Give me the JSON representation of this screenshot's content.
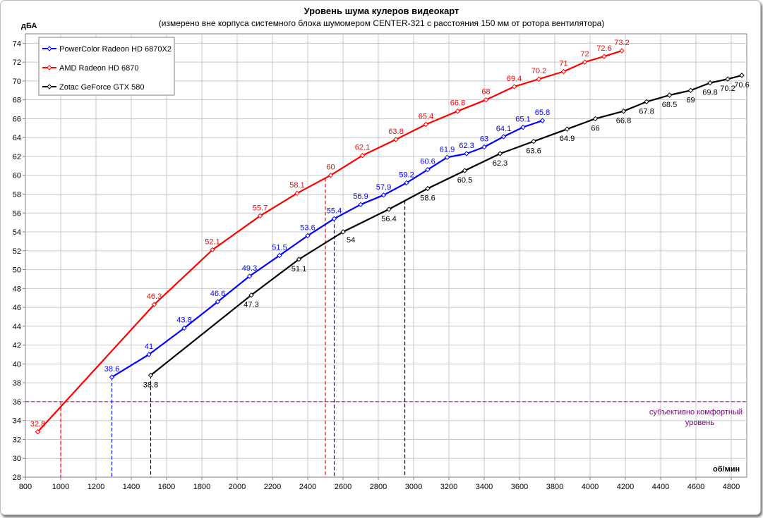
{
  "chart_data": {
    "type": "line",
    "title": "Уровень шума кулеров видеокарт",
    "subtitle": "(измерено вне корпуса системного блока шумомером CENTER-321 с расстояния 150  мм от ротора вентилятора)",
    "ylabel": "дБА",
    "xlabel": "об/мин",
    "xlim": [
      800,
      4880
    ],
    "ylim": [
      28,
      75
    ],
    "x_ticks": [
      800,
      1000,
      1200,
      1400,
      1600,
      1800,
      2000,
      2200,
      2400,
      2600,
      2800,
      3000,
      3200,
      3400,
      3600,
      3800,
      4000,
      4200,
      4400,
      4600,
      4800
    ],
    "y_ticks": [
      28,
      30,
      32,
      34,
      36,
      38,
      40,
      42,
      44,
      46,
      48,
      50,
      52,
      54,
      56,
      58,
      60,
      62,
      64,
      66,
      68,
      70,
      72,
      74
    ],
    "grid": true,
    "legend_position": "top-left",
    "comfort_level": {
      "y": 36,
      "label_line1": "субъективно комфортный",
      "label_line2": "уровень",
      "color": "#800080"
    },
    "series": [
      {
        "name": "PowerColor Radeon HD 6870X2",
        "color": "#0000ff",
        "points": [
          [
            1290,
            38.6,
            "38.6"
          ],
          [
            1500,
            41.0,
            "41"
          ],
          [
            1700,
            43.8,
            "43.8"
          ],
          [
            1890,
            46.6,
            "46.6"
          ],
          [
            2070,
            49.3,
            "49.3"
          ],
          [
            2240,
            51.5,
            "51.5"
          ],
          [
            2400,
            53.6,
            "53.6"
          ],
          [
            2550,
            55.4,
            "55.4"
          ],
          [
            2700,
            56.9,
            "56.9"
          ],
          [
            2830,
            57.9,
            "57.9"
          ],
          [
            2960,
            59.2,
            "59.2"
          ],
          [
            3080,
            60.6,
            "60.6"
          ],
          [
            3190,
            61.9,
            "61.9"
          ],
          [
            3300,
            62.3,
            "62.3"
          ],
          [
            3400,
            63.0,
            "63"
          ],
          [
            3510,
            64.1,
            "64.1"
          ],
          [
            3620,
            65.1,
            "65.1"
          ],
          [
            3730,
            65.8,
            "65.8"
          ]
        ],
        "label_positions": [
          "above",
          "above",
          "above",
          "above",
          "above",
          "above",
          "above",
          "above",
          "above",
          "above",
          "above",
          "above",
          "above",
          "above",
          "above",
          "above",
          "above",
          "above"
        ],
        "drop_line_x": 1290,
        "drop_line_x2": 2550
      },
      {
        "name": "AMD Radeon HD 6870",
        "color": "#ff0000",
        "points": [
          [
            870,
            32.8,
            "32.8"
          ],
          [
            1530,
            46.3,
            "46.3"
          ],
          [
            1860,
            52.1,
            "52.1"
          ],
          [
            2130,
            55.7,
            "55.7"
          ],
          [
            2340,
            58.1,
            "58.1"
          ],
          [
            2530,
            60.0,
            "60"
          ],
          [
            2710,
            62.1,
            "62.1"
          ],
          [
            2900,
            63.8,
            "63.8"
          ],
          [
            3070,
            65.4,
            "65.4"
          ],
          [
            3250,
            66.8,
            "66.8"
          ],
          [
            3410,
            68.0,
            "68"
          ],
          [
            3570,
            69.4,
            "69.4"
          ],
          [
            3710,
            70.2,
            "70.2"
          ],
          [
            3850,
            71.0,
            "71"
          ],
          [
            3970,
            72.0,
            "72"
          ],
          [
            4080,
            72.6,
            "72.6"
          ],
          [
            4180,
            73.2,
            "73.2"
          ]
        ],
        "label_positions": [
          "above",
          "above",
          "above",
          "above",
          "above",
          "above",
          "above",
          "above",
          "above",
          "above",
          "above",
          "above",
          "above",
          "above",
          "above",
          "above",
          "above"
        ],
        "drop_line_x": 1000,
        "drop_line_x2": 2500
      },
      {
        "name": "Zotac GeForce GTX 580",
        "color": "#000000",
        "points": [
          [
            1510,
            38.8,
            "38.8"
          ],
          [
            2080,
            47.3,
            "47.3"
          ],
          [
            2350,
            51.1,
            "51.1"
          ],
          [
            2600,
            54.0,
            "54"
          ],
          [
            2860,
            56.4,
            "56.4"
          ],
          [
            3080,
            58.6,
            "58.6"
          ],
          [
            3290,
            60.5,
            "60.5"
          ],
          [
            3490,
            62.3,
            "62.3"
          ],
          [
            3680,
            63.6,
            "63.6"
          ],
          [
            3870,
            64.9,
            "64.9"
          ],
          [
            4030,
            66.0,
            "66"
          ],
          [
            4190,
            66.8,
            "66.8"
          ],
          [
            4320,
            67.8,
            "67.8"
          ],
          [
            4450,
            68.5,
            "68.5"
          ],
          [
            4570,
            69.0,
            "69"
          ],
          [
            4680,
            69.8,
            "69.8"
          ],
          [
            4780,
            70.2,
            "70.2"
          ],
          [
            4860,
            70.6,
            "70.6"
          ]
        ],
        "label_positions": [
          "below",
          "below",
          "below",
          "right",
          "below",
          "below",
          "below",
          "below",
          "below",
          "below",
          "below",
          "below",
          "below",
          "below",
          "below",
          "below",
          "below",
          "below"
        ],
        "drop_line_x": 1510,
        "drop_line_x2": 2950
      }
    ]
  }
}
